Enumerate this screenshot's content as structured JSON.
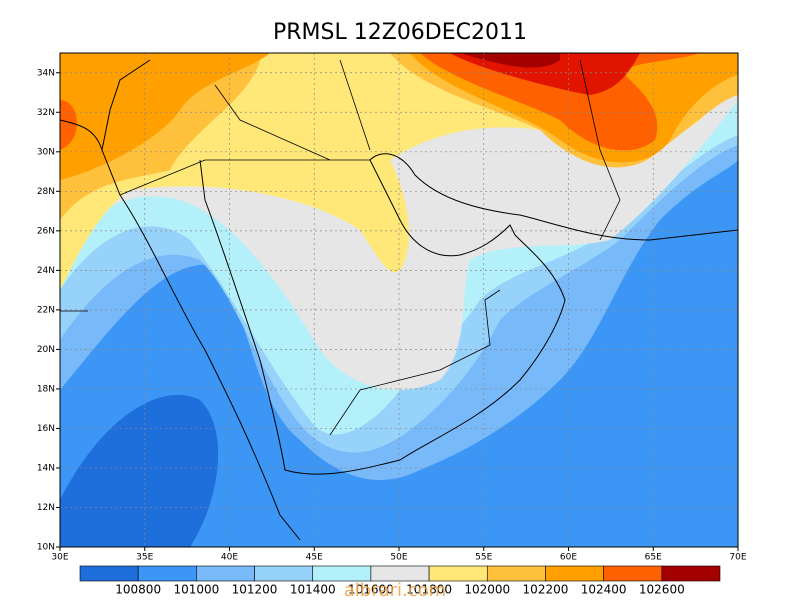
{
  "title": "PRMSL 12Z06DEC2011",
  "map": {
    "xlim": [
      30,
      70
    ],
    "ylim": [
      10,
      35
    ],
    "xticks": [
      {
        "value": 30,
        "label": "30E"
      },
      {
        "value": 35,
        "label": "35E"
      },
      {
        "value": 40,
        "label": "40E"
      },
      {
        "value": 45,
        "label": "45E"
      },
      {
        "value": 50,
        "label": "50E"
      },
      {
        "value": 55,
        "label": "55E"
      },
      {
        "value": 60,
        "label": "60E"
      },
      {
        "value": 65,
        "label": "65E"
      },
      {
        "value": 70,
        "label": "70E"
      }
    ],
    "yticks": [
      {
        "value": 10,
        "label": "10N"
      },
      {
        "value": 12,
        "label": "12N"
      },
      {
        "value": 14,
        "label": "14N"
      },
      {
        "value": 16,
        "label": "16N"
      },
      {
        "value": 18,
        "label": "18N"
      },
      {
        "value": 20,
        "label": "20N"
      },
      {
        "value": 22,
        "label": "22N"
      },
      {
        "value": 24,
        "label": "24N"
      },
      {
        "value": 26,
        "label": "26N"
      },
      {
        "value": 28,
        "label": "28N"
      },
      {
        "value": 30,
        "label": "30N"
      },
      {
        "value": 32,
        "label": "32N"
      },
      {
        "value": 34,
        "label": "34N"
      }
    ],
    "grid": true
  },
  "colorbar": {
    "levels": [
      100800,
      101000,
      101200,
      101400,
      101600,
      101800,
      102000,
      102200,
      102400,
      102600
    ],
    "colors": [
      "#1e6edc",
      "#3c96f5",
      "#78b9fa",
      "#96d2fa",
      "#b4f0fa",
      "#e6e6e6",
      "#ffe878",
      "#ffc03c",
      "#ffa000",
      "#ff6000",
      "#a50000"
    ]
  },
  "watermark": "albrari.com"
}
